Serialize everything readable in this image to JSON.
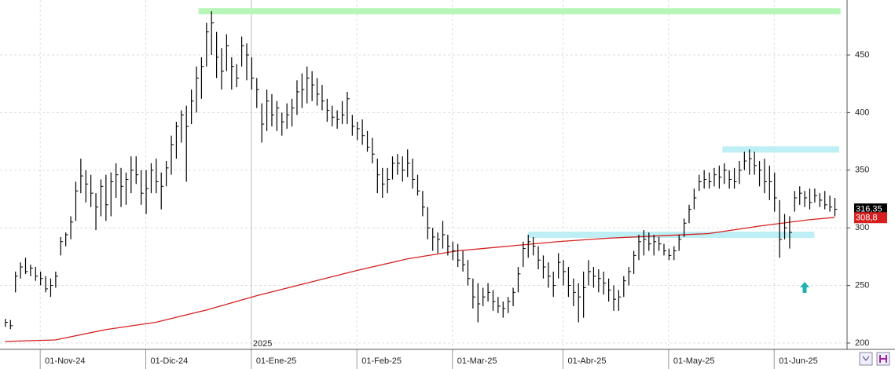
{
  "chart_data": {
    "type": "ohlc",
    "color": "#000000",
    "high": [
      221,
      220,
      262,
      270,
      274,
      268,
      266,
      262,
      258,
      256,
      262,
      292,
      296,
      310,
      340,
      360,
      350,
      346,
      330,
      342,
      346,
      348,
      356,
      352,
      348,
      362,
      362,
      350,
      350,
      356,
      360,
      348,
      358,
      380,
      392,
      402,
      406,
      420,
      440,
      448,
      478,
      488,
      470,
      456,
      468,
      448,
      442,
      466,
      460,
      448,
      430,
      408,
      420,
      416,
      410,
      400,
      408,
      412,
      428,
      434,
      440,
      436,
      430,
      424,
      412,
      406,
      402,
      410,
      418,
      398,
      392,
      394,
      384,
      378,
      360,
      352,
      352,
      362,
      364,
      362,
      368,
      360,
      346,
      332,
      318,
      300,
      296,
      306,
      294,
      288,
      286,
      280,
      272,
      256,
      252,
      248,
      252,
      246,
      240,
      236,
      240,
      248,
      266,
      288,
      294,
      292,
      284,
      276,
      270,
      262,
      278,
      272,
      266,
      256,
      252,
      262,
      272,
      266,
      264,
      262,
      256,
      250,
      246,
      258,
      266,
      280,
      294,
      298,
      296,
      294,
      292,
      286,
      282,
      284,
      294,
      308,
      320,
      334,
      346,
      350,
      348,
      352,
      354,
      356,
      350,
      352,
      358,
      366,
      368,
      366,
      358,
      360,
      354,
      348,
      324,
      312,
      310,
      332,
      336,
      332,
      334,
      334,
      330,
      332,
      328,
      326
    ],
    "low": [
      214,
      212,
      244,
      256,
      260,
      258,
      254,
      250,
      244,
      240,
      248,
      276,
      284,
      290,
      306,
      330,
      322,
      318,
      298,
      310,
      306,
      310,
      326,
      318,
      320,
      330,
      338,
      320,
      312,
      330,
      330,
      316,
      336,
      346,
      360,
      374,
      340,
      390,
      400,
      412,
      440,
      450,
      430,
      420,
      436,
      420,
      422,
      440,
      428,
      420,
      404,
      374,
      384,
      388,
      384,
      380,
      386,
      388,
      398,
      404,
      408,
      410,
      406,
      402,
      392,
      388,
      386,
      390,
      390,
      380,
      376,
      372,
      366,
      356,
      330,
      326,
      330,
      342,
      346,
      340,
      344,
      334,
      328,
      310,
      290,
      280,
      278,
      282,
      276,
      272,
      266,
      262,
      250,
      230,
      218,
      232,
      236,
      228,
      226,
      222,
      226,
      232,
      244,
      266,
      274,
      276,
      264,
      256,
      248,
      240,
      256,
      250,
      240,
      232,
      218,
      222,
      250,
      248,
      244,
      242,
      236,
      228,
      228,
      240,
      250,
      260,
      272,
      276,
      280,
      276,
      280,
      276,
      272,
      272,
      280,
      292,
      304,
      316,
      332,
      334,
      334,
      336,
      334,
      338,
      334,
      334,
      338,
      350,
      346,
      346,
      336,
      330,
      324,
      314,
      274,
      290,
      282,
      314,
      320,
      318,
      316,
      322,
      318,
      316,
      314,
      310
    ],
    "close": [
      218,
      215,
      258,
      266,
      262,
      265,
      258,
      256,
      247,
      250,
      258,
      288,
      294,
      305,
      332,
      345,
      338,
      330,
      318,
      336,
      320,
      340,
      346,
      336,
      342,
      350,
      346,
      330,
      334,
      350,
      340,
      336,
      352,
      372,
      388,
      398,
      388,
      410,
      430,
      440,
      470,
      478,
      448,
      436,
      458,
      440,
      430,
      458,
      450,
      430,
      420,
      390,
      410,
      398,
      404,
      392,
      398,
      404,
      418,
      420,
      430,
      424,
      416,
      410,
      402,
      396,
      394,
      398,
      412,
      388,
      386,
      380,
      370,
      364,
      346,
      338,
      342,
      356,
      356,
      350,
      356,
      342,
      332,
      318,
      300,
      292,
      290,
      294,
      284,
      280,
      272,
      268,
      256,
      240,
      234,
      240,
      244,
      236,
      232,
      230,
      236,
      244,
      260,
      282,
      288,
      284,
      272,
      266,
      258,
      250,
      270,
      262,
      250,
      244,
      240,
      248,
      262,
      258,
      256,
      252,
      246,
      238,
      240,
      254,
      262,
      276,
      288,
      290,
      286,
      288,
      286,
      280,
      276,
      280,
      290,
      304,
      316,
      326,
      340,
      342,
      340,
      346,
      344,
      350,
      342,
      340,
      350,
      358,
      360,
      354,
      350,
      340,
      340,
      326,
      290,
      300,
      296,
      326,
      330,
      326,
      322,
      328,
      324,
      320,
      318,
      316
    ],
    "ma": {
      "color": "#d62020",
      "x": [
        0,
        10,
        20,
        30,
        40,
        50,
        60,
        70,
        80,
        90,
        100,
        110,
        120,
        130,
        140,
        150,
        160,
        165
      ],
      "values": [
        201.4,
        202.7,
        211.6,
        218,
        228.6,
        241,
        252,
        263,
        273,
        280,
        284,
        288,
        291,
        293,
        295,
        301.5,
        307,
        309
      ]
    },
    "bands": [
      {
        "color": "#b8f5b8",
        "y": 488,
        "x": [
          38.5,
          166.2
        ]
      },
      {
        "color": "#bdeff5",
        "y": 368,
        "x": [
          142.7,
          165.9
        ]
      },
      {
        "color": "#bdeff5",
        "y": 294,
        "x": [
          104,
          161
        ]
      }
    ],
    "last_price": {
      "value": 316.35,
      "label": "316,35"
    },
    "ma_last": {
      "value": 308.8,
      "label": "308,8"
    },
    "year_label": "2025",
    "xlim": [
      -1,
      167.5
    ],
    "ylim": [
      194.5,
      497.7
    ],
    "yticks": [
      200,
      250,
      300,
      350,
      400,
      450
    ],
    "xticks": [
      {
        "value": 7,
        "label": "01-Nov-24"
      },
      {
        "value": 28,
        "label": "01-Dic-24"
      },
      {
        "value": 49,
        "label": "01-Ene-25"
      },
      {
        "value": 70,
        "label": "01-Feb-25"
      },
      {
        "value": 89,
        "label": "01-Mar-25"
      },
      {
        "value": 111,
        "label": "01-Abr-25"
      },
      {
        "value": 132,
        "label": "01-May-25"
      },
      {
        "value": 153,
        "label": "01-Jun-25"
      }
    ],
    "grid": true
  }
}
